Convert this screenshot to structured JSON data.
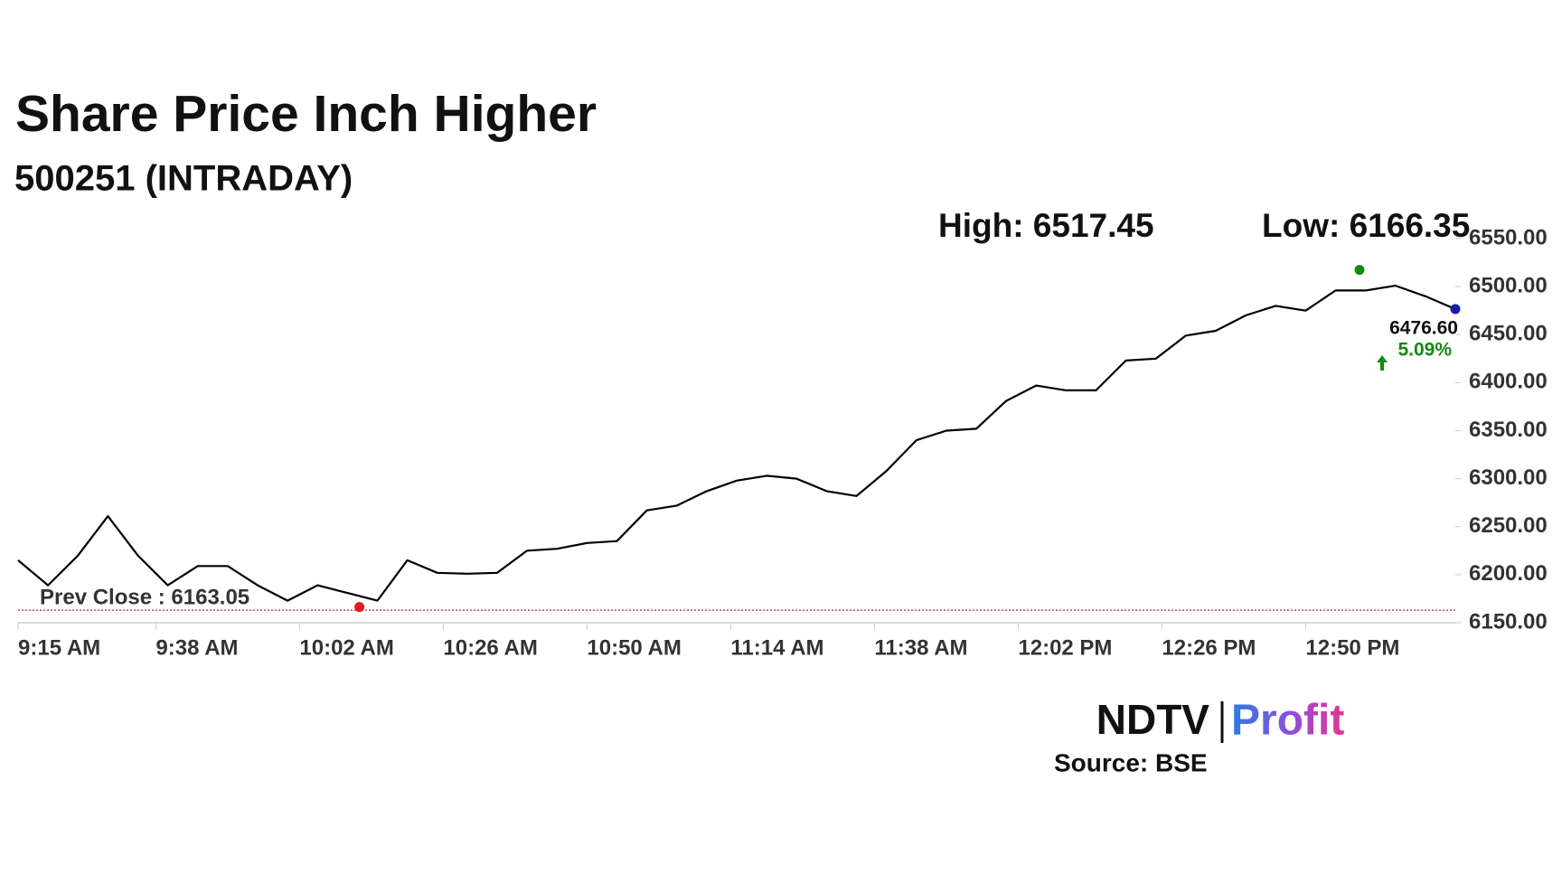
{
  "chart_data": {
    "type": "line",
    "title": "Share Price Inch Higher",
    "subtitle": "500251 (INTRADAY)",
    "x": [
      "9:15 AM",
      "9:20 AM",
      "9:25 AM",
      "9:30 AM",
      "9:35 AM",
      "9:40 AM",
      "9:45 AM",
      "9:50 AM",
      "9:55 AM",
      "10:00 AM",
      "10:05 AM",
      "10:10 AM",
      "10:15 AM",
      "10:20 AM",
      "10:25 AM",
      "10:30 AM",
      "10:35 AM",
      "10:40 AM",
      "10:45 AM",
      "10:50 AM",
      "10:55 AM",
      "11:00 AM",
      "11:05 AM",
      "11:10 AM",
      "11:15 AM",
      "11:20 AM",
      "11:25 AM",
      "11:30 AM",
      "11:35 AM",
      "11:40 AM",
      "11:45 AM",
      "11:50 AM",
      "11:55 AM",
      "12:00 PM",
      "12:05 PM",
      "12:10 PM",
      "12:15 PM",
      "12:20 PM",
      "12:25 PM",
      "12:30 PM",
      "12:35 PM",
      "12:40 PM",
      "12:45 PM",
      "12:50 PM",
      "12:55 PM",
      "1:00 PM",
      "1:05 PM",
      "1:10 PM",
      "1:15 PM"
    ],
    "values": [
      6215,
      6189,
      6220,
      6261,
      6220,
      6189,
      6209,
      6209,
      6189,
      6173,
      6189,
      6181,
      6173,
      6215,
      6202,
      6201,
      6202,
      6225,
      6227,
      6233,
      6235,
      6267,
      6272,
      6287,
      6298,
      6303,
      6300,
      6287,
      6282,
      6308,
      6340,
      6350,
      6352,
      6381,
      6397,
      6392,
      6392,
      6423,
      6425,
      6449,
      6454,
      6470,
      6480,
      6475,
      6496,
      6496,
      6501,
      6490,
      6476.6
    ],
    "color": "#000000",
    "xlim": [
      "9:15 AM",
      "1:15 PM"
    ],
    "xticks": [
      "9:15 AM",
      "9:38 AM",
      "10:02 AM",
      "10:26 AM",
      "10:50 AM",
      "11:14 AM",
      "11:38 AM",
      "12:02 PM",
      "12:26 PM",
      "12:50 PM"
    ],
    "ylim": [
      6150,
      6550
    ],
    "yticks": [
      {
        "value": 6150,
        "label": "6150.00"
      },
      {
        "value": 6200,
        "label": "6200.00"
      },
      {
        "value": 6250,
        "label": "6250.00"
      },
      {
        "value": 6300,
        "label": "6300.00"
      },
      {
        "value": 6350,
        "label": "6350.00"
      },
      {
        "value": 6400,
        "label": "6400.00"
      },
      {
        "value": 6450,
        "label": "6450.00"
      },
      {
        "value": 6500,
        "label": "6500.00"
      },
      {
        "value": 6550,
        "label": "6550.00"
      }
    ],
    "high": {
      "x": "12:59 PM",
      "value": 6517.45,
      "label": "High: 6517.45",
      "color": "#138a13"
    },
    "low": {
      "x": "10:12 AM",
      "value": 6166.35,
      "label": "Low: 6166.35",
      "color": "#e8161b"
    },
    "last": {
      "x": "1:15 PM",
      "value": 6476.6,
      "label": "6476.60",
      "color": "#1a1aa8"
    },
    "change": {
      "value": 5.09,
      "label": "5.09%",
      "color": "#138a13"
    },
    "prev_close": {
      "value": 6163.05,
      "label": "Prev Close : 6163.05",
      "color": "#c0262d"
    }
  },
  "branding": {
    "logo_left": "NDTV",
    "logo_right": "Profit",
    "source": "Source: BSE"
  }
}
